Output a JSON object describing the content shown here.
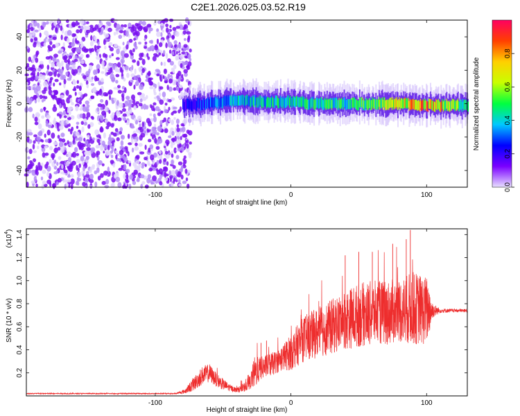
{
  "chart_data": [
    {
      "type": "heatmap",
      "title": "C2E1.2026.025.03.52.R19",
      "xlabel": "Height of straight line (km)",
      "ylabel": "Frequency (Hz)",
      "xlim": [
        -195,
        130
      ],
      "ylim": [
        -50,
        50
      ],
      "xticks": [
        -100,
        0,
        100
      ],
      "xtick_labels": [
        "-100",
        "0",
        "100"
      ],
      "yticks": [
        -40,
        -20,
        0,
        20,
        40
      ],
      "ytick_labels": [
        "-40",
        "-20",
        "0",
        "20",
        "40"
      ],
      "noise_region_end_km": -80,
      "ridge": {
        "description": "narrow high-amplitude band centered near 0 Hz from -80 km onward",
        "center_hz": [
          [
            -80,
            -1
          ],
          [
            -60,
            0
          ],
          [
            -40,
            2
          ],
          [
            -20,
            1
          ],
          [
            0,
            1
          ],
          [
            20,
            0
          ],
          [
            40,
            0
          ],
          [
            60,
            0
          ],
          [
            80,
            0
          ],
          [
            100,
            -1
          ],
          [
            130,
            -1
          ]
        ],
        "half_width_hz": 4,
        "peak_amplitude": [
          [
            -80,
            0.25
          ],
          [
            -40,
            0.5
          ],
          [
            0,
            0.55
          ],
          [
            50,
            0.6
          ],
          [
            80,
            0.85
          ],
          [
            105,
            1.0
          ],
          [
            130,
            0.5
          ]
        ]
      },
      "colorbar": {
        "label": "Normalized spectral amplitude",
        "range": [
          0,
          1
        ],
        "ticks": [
          0,
          0.2,
          0.4,
          0.6,
          0.8
        ],
        "tick_labels": [
          "0.0",
          "0.2",
          "0.4",
          "0.6",
          "0.8"
        ],
        "colormap": [
          "#e8e0ff",
          "#7a00ff",
          "#0000ff",
          "#00c8ff",
          "#00ff40",
          "#c8ff00",
          "#ffd000",
          "#ff4000",
          "#ff0060"
        ]
      }
    },
    {
      "type": "line",
      "xlabel": "Height of straight line (km)",
      "ylabel": "SNR (10 * v/v)",
      "scale_label": "(x10",
      "scale_exp": "4",
      "scale_close": ")",
      "xlim": [
        -195,
        130
      ],
      "ylim": [
        0,
        1.45
      ],
      "xticks": [
        -100,
        0,
        100
      ],
      "xtick_labels": [
        "-100",
        "0",
        "100"
      ],
      "yticks": [
        0.2,
        0.4,
        0.6,
        0.8,
        1.0,
        1.2,
        1.4
      ],
      "ytick_labels": [
        "0.2",
        "0.4",
        "0.6",
        "0.8",
        "1.0",
        "1.2",
        "1.4"
      ],
      "color": "#ee2d2d",
      "series": [
        {
          "name": "SNR",
          "x": [
            -195,
            -160,
            -120,
            -85,
            -78,
            -72,
            -65,
            -60,
            -55,
            -50,
            -45,
            -40,
            -35,
            -30,
            -27,
            -22,
            -20,
            -15,
            -10,
            -5,
            0,
            10,
            20,
            30,
            40,
            50,
            60,
            70,
            80,
            90,
            100,
            105,
            110,
            120,
            130
          ],
          "mean": [
            0.02,
            0.02,
            0.02,
            0.02,
            0.04,
            0.1,
            0.18,
            0.2,
            0.14,
            0.1,
            0.07,
            0.05,
            0.07,
            0.12,
            0.2,
            0.24,
            0.25,
            0.27,
            0.3,
            0.34,
            0.38,
            0.5,
            0.55,
            0.6,
            0.66,
            0.7,
            0.72,
            0.72,
            0.74,
            0.76,
            0.74,
            0.74,
            0.74,
            0.74,
            0.74
          ],
          "spread": [
            0.005,
            0.005,
            0.005,
            0.005,
            0.02,
            0.06,
            0.08,
            0.08,
            0.06,
            0.05,
            0.03,
            0.02,
            0.04,
            0.06,
            0.14,
            0.1,
            0.1,
            0.1,
            0.1,
            0.12,
            0.16,
            0.2,
            0.22,
            0.24,
            0.26,
            0.28,
            0.28,
            0.28,
            0.28,
            0.32,
            0.3,
            0.06,
            0.02,
            0.015,
            0.015
          ],
          "peaks": [
            [
              -22,
              0.46
            ],
            [
              -18,
              0.48
            ],
            [
              10,
              0.62
            ],
            [
              40,
              1.22
            ],
            [
              50,
              1.25
            ],
            [
              60,
              1.25
            ],
            [
              75,
              1.32
            ],
            [
              85,
              1.36
            ],
            [
              88,
              1.44
            ],
            [
              95,
              1.02
            ],
            [
              102,
              0.88
            ]
          ]
        }
      ]
    }
  ]
}
